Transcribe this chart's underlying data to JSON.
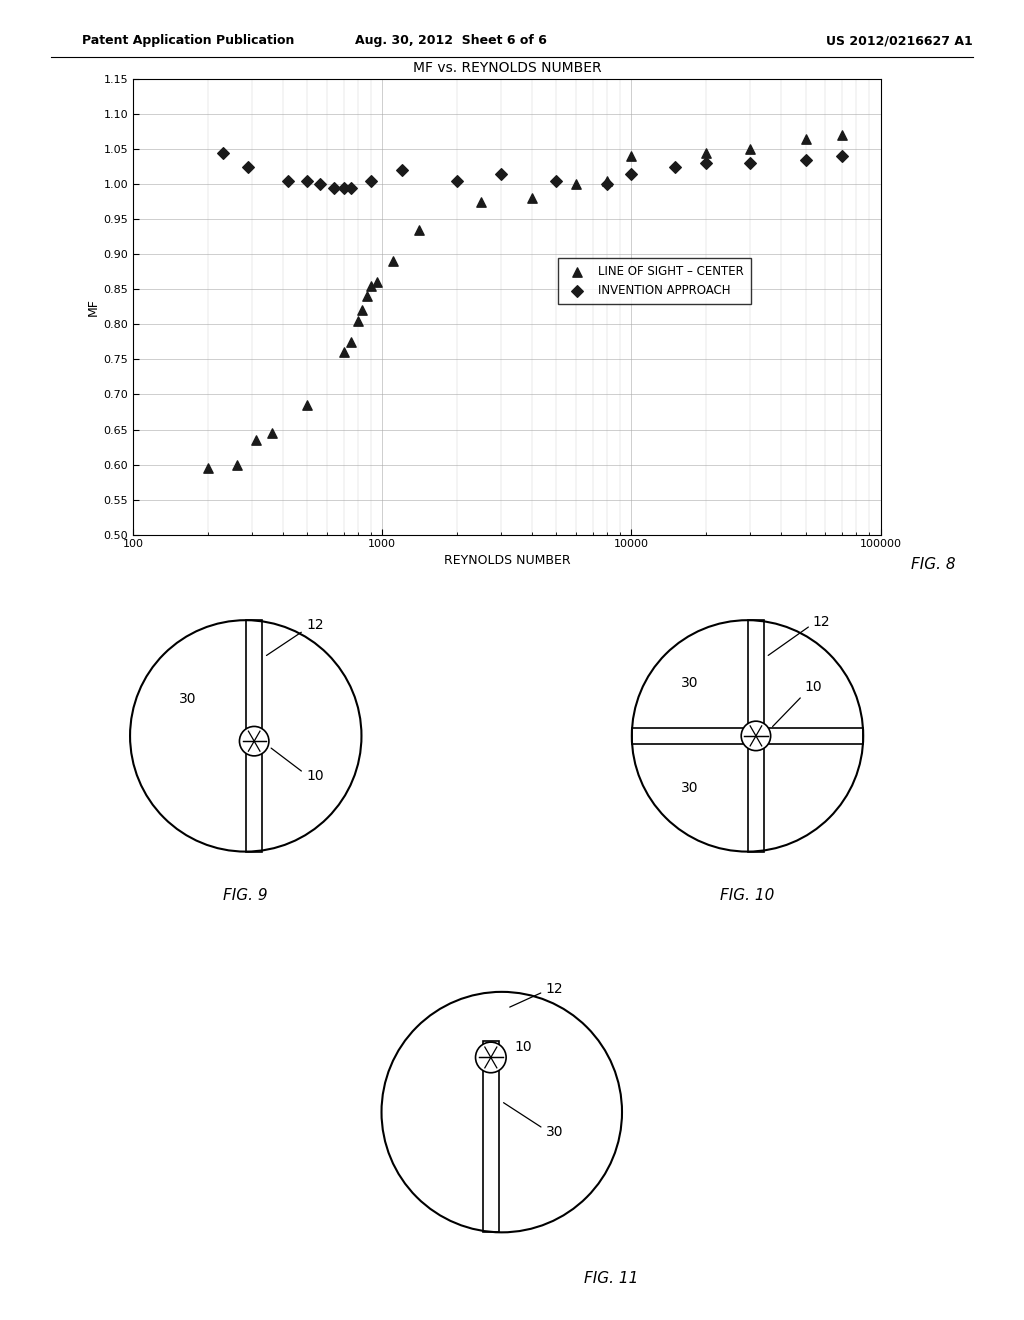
{
  "title": "MF vs. REYNOLDS NUMBER",
  "xlabel": "REYNOLDS NUMBER",
  "ylabel": "MF",
  "xlim": [
    100,
    100000
  ],
  "ylim": [
    0.5,
    1.15
  ],
  "yticks": [
    0.5,
    0.55,
    0.6,
    0.65,
    0.7,
    0.75,
    0.8,
    0.85,
    0.9,
    0.95,
    1.0,
    1.05,
    1.1,
    1.15
  ],
  "header_left": "Patent Application Publication",
  "header_center": "Aug. 30, 2012  Sheet 6 of 6",
  "header_right": "US 2012/0216627 A1",
  "triangle_data": [
    [
      200,
      0.595
    ],
    [
      260,
      0.6
    ],
    [
      310,
      0.635
    ],
    [
      360,
      0.645
    ],
    [
      500,
      0.685
    ],
    [
      700,
      0.76
    ],
    [
      750,
      0.775
    ],
    [
      800,
      0.805
    ],
    [
      830,
      0.82
    ],
    [
      870,
      0.84
    ],
    [
      900,
      0.855
    ],
    [
      950,
      0.86
    ],
    [
      1100,
      0.89
    ],
    [
      1400,
      0.935
    ],
    [
      2500,
      0.975
    ],
    [
      4000,
      0.98
    ],
    [
      6000,
      1.0
    ],
    [
      8000,
      1.005
    ],
    [
      10000,
      1.04
    ],
    [
      20000,
      1.045
    ],
    [
      30000,
      1.05
    ],
    [
      50000,
      1.065
    ],
    [
      70000,
      1.07
    ]
  ],
  "diamond_data": [
    [
      230,
      1.045
    ],
    [
      290,
      1.025
    ],
    [
      420,
      1.005
    ],
    [
      500,
      1.005
    ],
    [
      560,
      1.0
    ],
    [
      640,
      0.995
    ],
    [
      700,
      0.995
    ],
    [
      750,
      0.995
    ],
    [
      900,
      1.005
    ],
    [
      1200,
      1.02
    ],
    [
      2000,
      1.005
    ],
    [
      3000,
      1.015
    ],
    [
      5000,
      1.005
    ],
    [
      8000,
      1.0
    ],
    [
      10000,
      1.015
    ],
    [
      15000,
      1.025
    ],
    [
      20000,
      1.03
    ],
    [
      30000,
      1.03
    ],
    [
      50000,
      1.035
    ],
    [
      70000,
      1.04
    ]
  ],
  "legend_labels": [
    "LINE OF SIGHT – CENTER",
    "INVENTION APPROACH"
  ],
  "fig8_label": "FIG. 8",
  "fig9_label": "FIG. 9",
  "fig10_label": "FIG. 10",
  "fig11_label": "FIG. 11",
  "background_color": "#ffffff",
  "text_color": "#000000",
  "grid_color": "#aaaaaa",
  "marker_color": "#1a1a1a"
}
